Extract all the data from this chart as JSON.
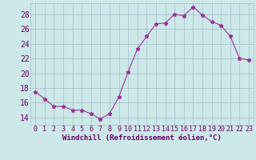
{
  "xlabel": "Windchill (Refroidissement éolien,°C)",
  "x": [
    0,
    1,
    2,
    3,
    4,
    5,
    6,
    7,
    8,
    9,
    10,
    11,
    12,
    13,
    14,
    15,
    16,
    17,
    18,
    19,
    20,
    21,
    22,
    23
  ],
  "y": [
    17.5,
    16.5,
    15.5,
    15.5,
    15.0,
    15.0,
    14.5,
    13.8,
    14.5,
    16.8,
    20.2,
    23.3,
    25.0,
    26.7,
    26.8,
    28.0,
    27.8,
    29.0,
    27.9,
    27.0,
    26.5,
    25.0,
    22.0,
    21.8
  ],
  "line_color": "#993399",
  "marker": "*",
  "bg_color": "#cce8e8",
  "grid_color": "#aabbcc",
  "tick_label_color": "#660066",
  "axis_label_color": "#660066",
  "ylim": [
    13,
    29.5
  ],
  "yticks": [
    14,
    16,
    18,
    20,
    22,
    24,
    26,
    28
  ],
  "xtick_labels": [
    "0",
    "1",
    "2",
    "3",
    "4",
    "5",
    "6",
    "7",
    "8",
    "9",
    "10",
    "11",
    "12",
    "13",
    "14",
    "15",
    "16",
    "17",
    "18",
    "19",
    "20",
    "21",
    "22",
    "23"
  ],
  "font": "monospace",
  "xlabel_fontsize": 6.5,
  "tick_fontsize": 6.0,
  "ytick_fontsize": 7.0
}
